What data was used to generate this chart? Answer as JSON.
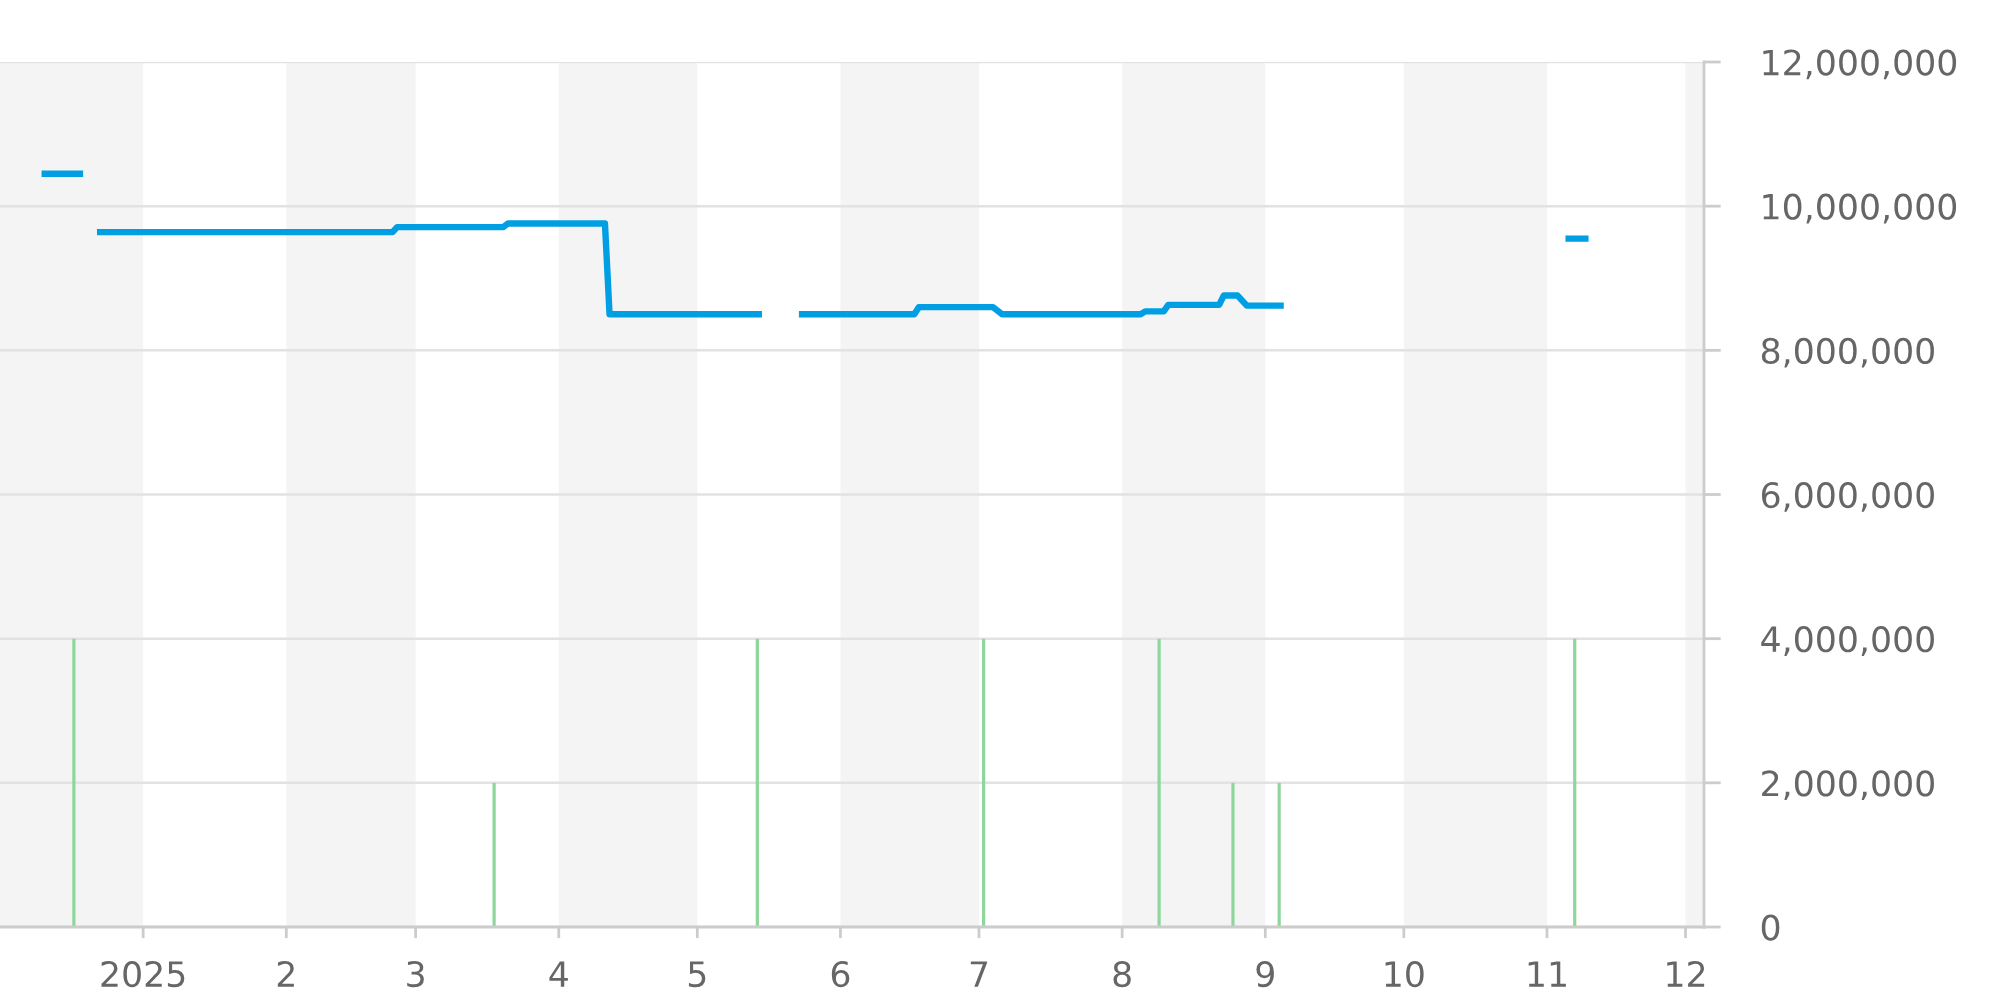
{
  "chart_data": {
    "type": "line",
    "xlim": [
      "2024-12-01",
      "2025-12-05"
    ],
    "xticks": [
      {
        "value": "2025-01-01",
        "label": "2025"
      },
      {
        "value": "2025-02-01",
        "label": "2"
      },
      {
        "value": "2025-03-01",
        "label": "3"
      },
      {
        "value": "2025-04-01",
        "label": "4"
      },
      {
        "value": "2025-05-01",
        "label": "5"
      },
      {
        "value": "2025-06-01",
        "label": "6"
      },
      {
        "value": "2025-07-01",
        "label": "7"
      },
      {
        "value": "2025-08-01",
        "label": "8"
      },
      {
        "value": "2025-09-01",
        "label": "9"
      },
      {
        "value": "2025-10-01",
        "label": "10"
      },
      {
        "value": "2025-11-01",
        "label": "11"
      },
      {
        "value": "2025-12-01",
        "label": "12"
      }
    ],
    "ylim": [
      0,
      12000000
    ],
    "yticks": [
      0,
      {
        "value": 2000000,
        "label": "2,000,000"
      },
      {
        "value": 4000000,
        "label": "4,000,000"
      },
      {
        "value": 6000000,
        "label": "6,000,000"
      },
      {
        "value": 8000000,
        "label": "8,000,000"
      },
      {
        "value": 10000000,
        "label": "10,000,000"
      },
      {
        "value": 12000000,
        "label": "12,000,000"
      }
    ],
    "grid": "y",
    "bands": [
      {
        "axis": "x",
        "from": "2024-12-01",
        "to": "2025-01-01",
        "color": "#f4f4f4"
      },
      {
        "axis": "x",
        "from": "2025-02-01",
        "to": "2025-03-01",
        "color": "#f4f4f4"
      },
      {
        "axis": "x",
        "from": "2025-04-01",
        "to": "2025-05-01",
        "color": "#f4f4f4"
      },
      {
        "axis": "x",
        "from": "2025-06-01",
        "to": "2025-07-01",
        "color": "#f4f4f4"
      },
      {
        "axis": "x",
        "from": "2025-08-01",
        "to": "2025-09-01",
        "color": "#f4f4f4"
      },
      {
        "axis": "x",
        "from": "2025-10-01",
        "to": "2025-11-01",
        "color": "#f4f4f4"
      },
      {
        "axis": "x",
        "from": "2025-12-01",
        "to": "2025-12-05",
        "color": "#f4f4f4"
      }
    ],
    "series": [
      {
        "type": "bar",
        "color": "#8fd69c",
        "x": [
          "2024-12-17",
          "2025-03-18",
          "2025-05-14",
          "2025-07-02",
          "2025-08-09",
          "2025-08-25",
          "2025-09-04",
          "2025-11-07"
        ],
        "values": [
          4000000,
          2000000,
          4000000,
          4000000,
          4000000,
          2000000,
          2000000,
          4000000
        ]
      },
      {
        "color": "#009fe3",
        "x": [
          "2024-12-10",
          "2024-12-19",
          "2024-12-20",
          "2024-12-22",
          "2025-02-24",
          "2025-02-25",
          "2025-03-20",
          "2025-03-21",
          "2025-04-11",
          "2025-04-12",
          "2025-05-15",
          "2025-05-19",
          "2025-05-23",
          "2025-06-17",
          "2025-06-18",
          "2025-07-04",
          "2025-07-06",
          "2025-08-05",
          "2025-08-06",
          "2025-08-10",
          "2025-08-11",
          "2025-08-22",
          "2025-08-23",
          "2025-08-26",
          "2025-08-28",
          "2025-09-05",
          "2025-09-10",
          "2025-11-05",
          "2025-11-10"
        ],
        "values": [
          10450000,
          10450000,
          null,
          9640000,
          9640000,
          9710000,
          9710000,
          9760000,
          9760000,
          8500000,
          8500000,
          null,
          8500000,
          8500000,
          8600000,
          8600000,
          8500000,
          8500000,
          8540000,
          8540000,
          8630000,
          8630000,
          8760000,
          8760000,
          8620000,
          8620000,
          null,
          9550000,
          9550000
        ]
      }
    ]
  }
}
